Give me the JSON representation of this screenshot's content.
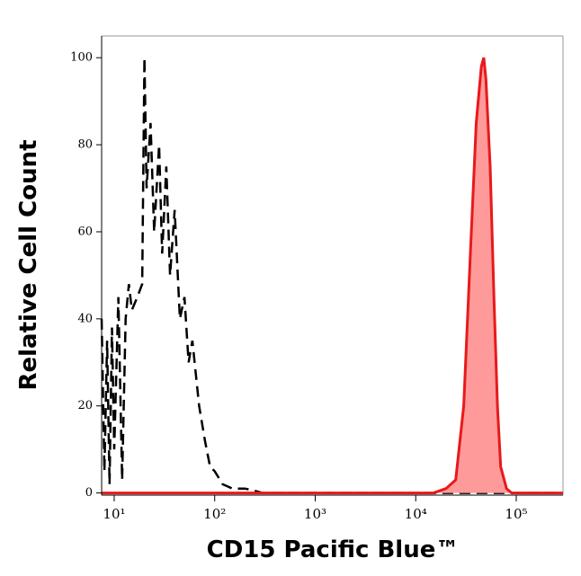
{
  "chart_data": {
    "type": "histogram-overlay",
    "xlabel": "CD15 Pacific Blue™",
    "ylabel": "Relative Cell Count",
    "xscale": "log",
    "xlim": [
      7.5,
      292000
    ],
    "ylim": [
      -0.5,
      105
    ],
    "xticks": [
      {
        "value": 10,
        "label": "10¹"
      },
      {
        "value": 100,
        "label": "10²"
      },
      {
        "value": 1000,
        "label": "10³"
      },
      {
        "value": 10000,
        "label": "10⁴"
      },
      {
        "value": 100000,
        "label": "10⁵"
      }
    ],
    "yticks": [
      0,
      20,
      40,
      60,
      80,
      100
    ],
    "series": [
      {
        "color": "#000000",
        "style": "dashed",
        "fill": false,
        "x": [
          7.5,
          8,
          8.5,
          9,
          9.5,
          10,
          11,
          12,
          13,
          14,
          15,
          17,
          19,
          20,
          21,
          23,
          25,
          28,
          30,
          33,
          36,
          40,
          45,
          50,
          55,
          60,
          70,
          80,
          90,
          100,
          120,
          150,
          200,
          250,
          300,
          1000,
          10000,
          292000
        ],
        "values": [
          40,
          5,
          35,
          2,
          38,
          10,
          45,
          3,
          40,
          48,
          42,
          45,
          48,
          100,
          70,
          85,
          60,
          80,
          55,
          75,
          50,
          65,
          40,
          45,
          30,
          35,
          20,
          12,
          6,
          5,
          2,
          1,
          1,
          0.5,
          0,
          0,
          0,
          0
        ]
      },
      {
        "color": "#e8191b",
        "fillcolor": "#ff9a9a",
        "style": "solid",
        "fill": true,
        "x": [
          7.5,
          15000,
          20000,
          25000,
          30000,
          35000,
          40000,
          45000,
          47500,
          50000,
          55000,
          60000,
          65000,
          70000,
          80000,
          90000,
          292000
        ],
        "values": [
          0,
          0,
          1,
          3,
          20,
          55,
          85,
          98,
          100,
          95,
          75,
          45,
          20,
          6,
          1,
          0,
          0
        ]
      }
    ]
  }
}
